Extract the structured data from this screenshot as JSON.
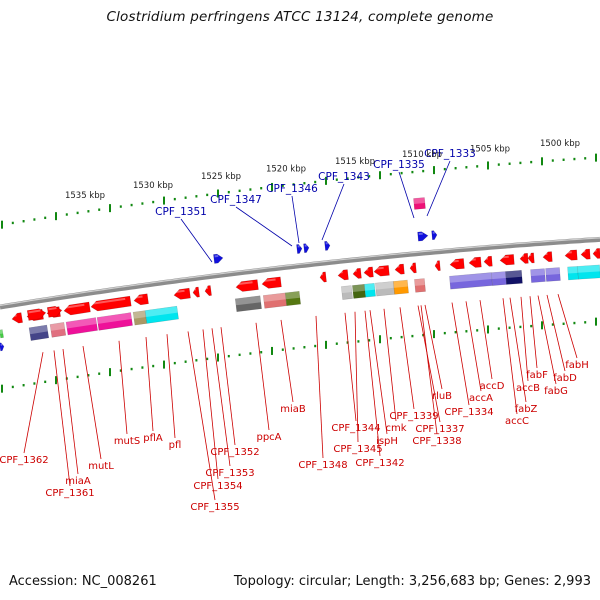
{
  "title": "Clostridium perfringens ATCC 13124, complete genome",
  "accession": "Accession: NC_008261",
  "topology": "Topology: circular; Length: 3,256,683 bp; Genes: 2,993",
  "colors": {
    "backbone": "#8c8c8c",
    "forward_gene": "#ff0000",
    "reverse_gene": "#ff0000",
    "rna_gene": "#1010dd",
    "tick": "#118811",
    "label_blue": "#0000aa",
    "label_red": "#cc0000"
  },
  "kbp_labels": [
    "1500 kbp",
    "1505 kbp",
    "1510 kbp",
    "1515 kbp",
    "1520 kbp",
    "1525 kbp",
    "1530 kbp",
    "1535 kbp"
  ],
  "blue_labels": [
    "CPF_1333",
    "CPF_1335",
    "CPF_1343",
    "CPF_1346",
    "CPF_1347",
    "CPF_1351"
  ],
  "red_labels": [
    "fabH",
    "fabD",
    "fabF",
    "fabG",
    "accB",
    "fabZ",
    "accC",
    "accD",
    "accA",
    "CPF_1334",
    "rluB",
    "CPF_1338",
    "CPF_1337",
    "CPF_1339",
    "cmk",
    "ispH",
    "CPF_1344",
    "CPF_1345",
    "CPF_1342",
    "CPF_1348",
    "miaB",
    "ppcA",
    "CPF_1352",
    "CPF_1353",
    "CPF_1354",
    "CPF_1355",
    "pfl",
    "pflA",
    "mutS",
    "mutL",
    "miaA",
    "CPF_1361",
    "CPF_1362"
  ]
}
